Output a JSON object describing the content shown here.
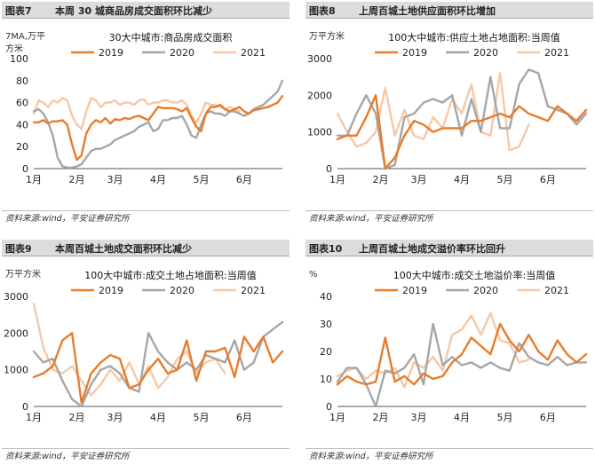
{
  "series_colors": {
    "2019": "#E87C2B",
    "2020": "#A6A6A6",
    "2021": "#F7C8A6"
  },
  "panels": [
    {
      "num": "图表7",
      "title": "本周 30 城商品房成交面积环比减少",
      "source": "资料来源:wind，平安证券研究所"
    },
    {
      "num": "图表8",
      "title": "上周百城土地供应面积环比增加",
      "source": "资料来源:wind，平安证券研究所"
    },
    {
      "num": "图表9",
      "title": "本周百城土地成交面积环比减少",
      "source": "资料来源:wind，平安证券研究所"
    },
    {
      "num": "图表10",
      "title": "上周百城土地成交溢价率环比回升",
      "source": "资料来源:wind，平安证券研究所"
    }
  ],
  "chart_data": [
    {
      "type": "line",
      "title": "30大中城市:商品房成交面积",
      "unit_label": [
        "7MA,万平",
        "方米"
      ],
      "ylim": [
        0,
        100
      ],
      "yticks": [
        0,
        20,
        40,
        60,
        80,
        100
      ],
      "xlim": [
        1,
        53
      ],
      "month_labels": [
        "1月",
        "2月",
        "3月",
        "4月",
        "5月",
        "6月"
      ],
      "month_ticks": [
        1,
        10,
        18,
        27,
        36,
        45
      ],
      "series": [
        {
          "name": "2019",
          "x": [
            1,
            2,
            3,
            4,
            5,
            6,
            7,
            8,
            9,
            10,
            11,
            12,
            13,
            14,
            15,
            16,
            17,
            18,
            19,
            20,
            21,
            22,
            23,
            24,
            25,
            26,
            27,
            28,
            29,
            30,
            31,
            32,
            33,
            34,
            35,
            36,
            37,
            38,
            39,
            40,
            41,
            42,
            43,
            44,
            45,
            46,
            47,
            48,
            49,
            50,
            51,
            52,
            53
          ],
          "values": [
            42,
            42,
            44,
            41,
            43,
            43,
            44,
            40,
            22,
            8,
            12,
            32,
            40,
            44,
            42,
            46,
            41,
            45,
            44,
            46,
            45,
            47,
            48,
            46,
            44,
            50,
            56,
            55,
            55,
            55,
            54,
            52,
            55,
            46,
            38,
            34,
            50,
            56,
            56,
            58,
            54,
            52,
            54,
            56,
            52,
            50,
            53,
            54,
            55,
            56,
            58,
            60,
            66
          ]
        },
        {
          "name": "2020",
          "x": [
            1,
            2,
            3,
            4,
            5,
            6,
            7,
            8,
            9,
            10,
            11,
            12,
            13,
            14,
            15,
            16,
            17,
            18,
            19,
            20,
            21,
            22,
            23,
            24,
            25,
            26,
            27,
            28,
            29,
            30,
            31,
            32,
            33,
            34,
            35,
            36,
            37,
            38,
            39,
            40,
            41,
            42,
            43,
            44,
            45,
            46,
            47,
            48,
            49,
            50,
            51,
            52,
            53
          ],
          "values": [
            52,
            54,
            50,
            42,
            30,
            10,
            2,
            1,
            1,
            2,
            4,
            10,
            16,
            18,
            18,
            20,
            22,
            26,
            28,
            30,
            32,
            34,
            38,
            40,
            42,
            34,
            36,
            44,
            44,
            46,
            46,
            48,
            40,
            30,
            28,
            40,
            50,
            52,
            50,
            50,
            48,
            52,
            52,
            50,
            48,
            50,
            54,
            56,
            58,
            62,
            66,
            70,
            80
          ]
        },
        {
          "name": "2021",
          "x": [
            1,
            2,
            3,
            4,
            5,
            6,
            7,
            8,
            9,
            10,
            11,
            12,
            13,
            14,
            15,
            16,
            17,
            18,
            19,
            20,
            21,
            22,
            23,
            24,
            25,
            26,
            27,
            28,
            29,
            30,
            31,
            32,
            33,
            34,
            35,
            36,
            37,
            38,
            39,
            40,
            41,
            42,
            43,
            44
          ],
          "values": [
            50,
            62,
            60,
            56,
            62,
            60,
            64,
            62,
            48,
            40,
            36,
            52,
            64,
            62,
            56,
            60,
            60,
            62,
            58,
            60,
            60,
            58,
            62,
            63,
            58,
            60,
            60,
            62,
            62,
            60,
            60,
            62,
            58,
            48,
            42,
            50,
            60,
            58,
            58,
            56,
            54,
            56,
            54,
            52
          ]
        }
      ]
    },
    {
      "type": "line",
      "title": "100大中城市:供应土地占地面积:当周值",
      "unit_label": [
        "万平方米",
        ""
      ],
      "ylim": [
        0,
        3000
      ],
      "yticks": [
        0,
        1000,
        2000,
        3000
      ],
      "xlim": [
        1,
        27
      ],
      "month_labels": [
        "1月",
        "2月",
        "3月",
        "4月",
        "5月",
        "6月"
      ],
      "month_ticks": [
        1,
        5.5,
        9.5,
        14,
        18.5,
        23
      ],
      "series": [
        {
          "name": "2019",
          "x": [
            1,
            2,
            3,
            4,
            5,
            6,
            7,
            8,
            9,
            10,
            11,
            12,
            13,
            14,
            15,
            16,
            17,
            18,
            19,
            20,
            21,
            22,
            23,
            24,
            25,
            26,
            27
          ],
          "values": [
            800,
            900,
            900,
            1400,
            2000,
            0,
            300,
            900,
            1300,
            1200,
            1000,
            1100,
            1100,
            1100,
            1300,
            1300,
            1400,
            1500,
            1400,
            1700,
            1500,
            1400,
            1300,
            1700,
            1500,
            1300,
            1600
          ]
        },
        {
          "name": "2020",
          "x": [
            1,
            2,
            3,
            4,
            5,
            6,
            7,
            8,
            9,
            10,
            11,
            12,
            13,
            14,
            15,
            16,
            17,
            18,
            19,
            20,
            21,
            22,
            23,
            24,
            25,
            26,
            27
          ],
          "values": [
            900,
            900,
            1500,
            2000,
            1500,
            0,
            100,
            1400,
            1500,
            1800,
            1900,
            1800,
            2000,
            900,
            1900,
            1000,
            2500,
            1100,
            1100,
            2300,
            2700,
            2600,
            1700,
            1600,
            1500,
            1200,
            1500
          ]
        },
        {
          "name": "2021",
          "x": [
            1,
            2,
            3,
            4,
            5,
            6,
            7,
            8,
            9,
            10,
            11,
            12,
            13,
            14,
            15,
            16,
            17,
            18,
            19,
            20,
            21
          ],
          "values": [
            1500,
            1000,
            600,
            700,
            1000,
            2200,
            900,
            1600,
            900,
            800,
            1400,
            1100,
            1900,
            1500,
            2300,
            1000,
            900,
            2600,
            500,
            600,
            1200
          ]
        }
      ]
    },
    {
      "type": "line",
      "title": "100大中城市:成交土地占地面积:当周值",
      "unit_label": [
        "万平方米",
        ""
      ],
      "ylim": [
        0,
        3000
      ],
      "yticks": [
        0,
        1000,
        2000,
        3000
      ],
      "xlim": [
        1,
        27
      ],
      "month_labels": [
        "1月",
        "2月",
        "3月",
        "4月",
        "5月",
        "6月"
      ],
      "month_ticks": [
        1,
        5.5,
        9.5,
        14,
        18.5,
        23
      ],
      "series": [
        {
          "name": "2019",
          "x": [
            1,
            2,
            3,
            4,
            5,
            6,
            7,
            8,
            9,
            10,
            11,
            12,
            13,
            14,
            15,
            16,
            17,
            18,
            19,
            20,
            21,
            22,
            23,
            24,
            25,
            26,
            27
          ],
          "values": [
            800,
            900,
            1100,
            1800,
            2000,
            100,
            900,
            1200,
            1400,
            1300,
            500,
            600,
            1000,
            1300,
            900,
            1000,
            1800,
            700,
            1500,
            1500,
            1600,
            800,
            1900,
            1500,
            1900,
            1200,
            1500
          ]
        },
        {
          "name": "2020",
          "x": [
            1,
            2,
            3,
            4,
            5,
            6,
            7,
            8,
            9,
            10,
            11,
            12,
            13,
            14,
            15,
            16,
            17,
            18,
            19,
            20,
            21,
            22,
            23,
            24,
            25,
            26,
            27
          ],
          "values": [
            1500,
            1200,
            1300,
            700,
            200,
            0,
            600,
            1000,
            1100,
            900,
            500,
            400,
            2000,
            1500,
            1200,
            1000,
            1200,
            1000,
            1400,
            1300,
            1200,
            1800,
            1000,
            1200,
            1900,
            2100,
            2300
          ]
        },
        {
          "name": "2021",
          "x": [
            1,
            2,
            3,
            4,
            5,
            6,
            7,
            8,
            9,
            10,
            11,
            12,
            13,
            14,
            15,
            16,
            17,
            18,
            19,
            20,
            21
          ],
          "values": [
            2800,
            1600,
            1000,
            900,
            1100,
            700,
            300,
            600,
            1000,
            700,
            1200,
            600,
            1100,
            500,
            800,
            1300,
            1500,
            900,
            1200,
            1300,
            900
          ]
        }
      ]
    },
    {
      "type": "line",
      "title": "100大中城市:成交土地溢价率:当周值",
      "unit_label": [
        "%",
        ""
      ],
      "ylim": [
        0,
        40
      ],
      "yticks": [
        0,
        10,
        20,
        30,
        40
      ],
      "xlim": [
        1,
        27
      ],
      "month_labels": [
        "1月",
        "2月",
        "3月",
        "4月",
        "5月",
        "6月"
      ],
      "month_ticks": [
        1,
        5.5,
        9.5,
        14,
        18.5,
        23
      ],
      "series": [
        {
          "name": "2019",
          "x": [
            1,
            2,
            3,
            4,
            5,
            6,
            7,
            8,
            9,
            10,
            11,
            12,
            13,
            14,
            15,
            16,
            17,
            18,
            19,
            20,
            21,
            22,
            23,
            24,
            25,
            26,
            27
          ],
          "values": [
            8,
            11,
            9,
            8,
            9,
            25,
            9,
            11,
            8,
            12,
            10,
            11,
            16,
            19,
            25,
            22,
            19,
            30,
            24,
            20,
            26,
            20,
            17,
            24,
            19,
            16,
            19
          ]
        },
        {
          "name": "2020",
          "x": [
            1,
            2,
            3,
            4,
            5,
            6,
            7,
            8,
            9,
            10,
            11,
            12,
            13,
            14,
            15,
            16,
            17,
            18,
            19,
            20,
            21,
            22,
            23,
            24,
            25,
            26,
            27
          ],
          "values": [
            9,
            14,
            14,
            8,
            0,
            13,
            12,
            14,
            19,
            8,
            30,
            15,
            18,
            15,
            16,
            14,
            16,
            14,
            13,
            23,
            18,
            16,
            15,
            18,
            15,
            16,
            16
          ]
        },
        {
          "name": "2021",
          "x": [
            1,
            2,
            3,
            4,
            5,
            6,
            7,
            8,
            9,
            10,
            11,
            12,
            13,
            14,
            15,
            16,
            17,
            18,
            19,
            20,
            21
          ],
          "values": [
            11,
            13,
            14,
            10,
            13,
            12,
            14,
            7,
            16,
            14,
            18,
            13,
            26,
            28,
            33,
            26,
            34,
            24,
            23,
            16,
            17
          ]
        }
      ]
    }
  ]
}
